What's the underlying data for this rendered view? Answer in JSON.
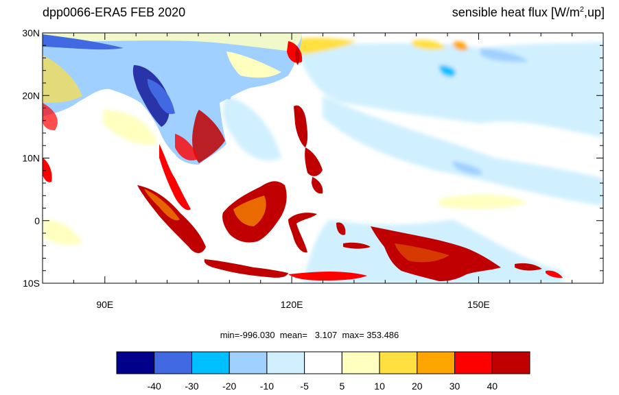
{
  "header": {
    "left_title": "dpp0066-ERA5  FEB 2020",
    "right_title_pre": "sensible heat flux [W/m",
    "right_title_sup": "2",
    "right_title_post": ",up]"
  },
  "map": {
    "lon_range": [
      80,
      170
    ],
    "lat_range": [
      -10,
      30
    ],
    "lat_labels": [
      "30N",
      "20N",
      "10N",
      "0",
      "10S"
    ],
    "lat_values": [
      30,
      20,
      10,
      0,
      -10
    ],
    "lon_labels": [
      "90E",
      "120E",
      "150E"
    ],
    "lon_values": [
      90,
      120,
      150
    ]
  },
  "stats": {
    "text": "min=-996.030  mean=   3.107  max= 353.486"
  },
  "colorbar": {
    "colors": [
      "#00008b",
      "#4169e1",
      "#00bfff",
      "#a0d0ff",
      "#d0f0ff",
      "#ffffff",
      "#ffffc0",
      "#ffe040",
      "#ffa500",
      "#ff0000",
      "#c00000"
    ],
    "labels": [
      "-40",
      "-30",
      "-20",
      "-10",
      "-5",
      "5",
      "10",
      "20",
      "30",
      "40"
    ]
  }
}
